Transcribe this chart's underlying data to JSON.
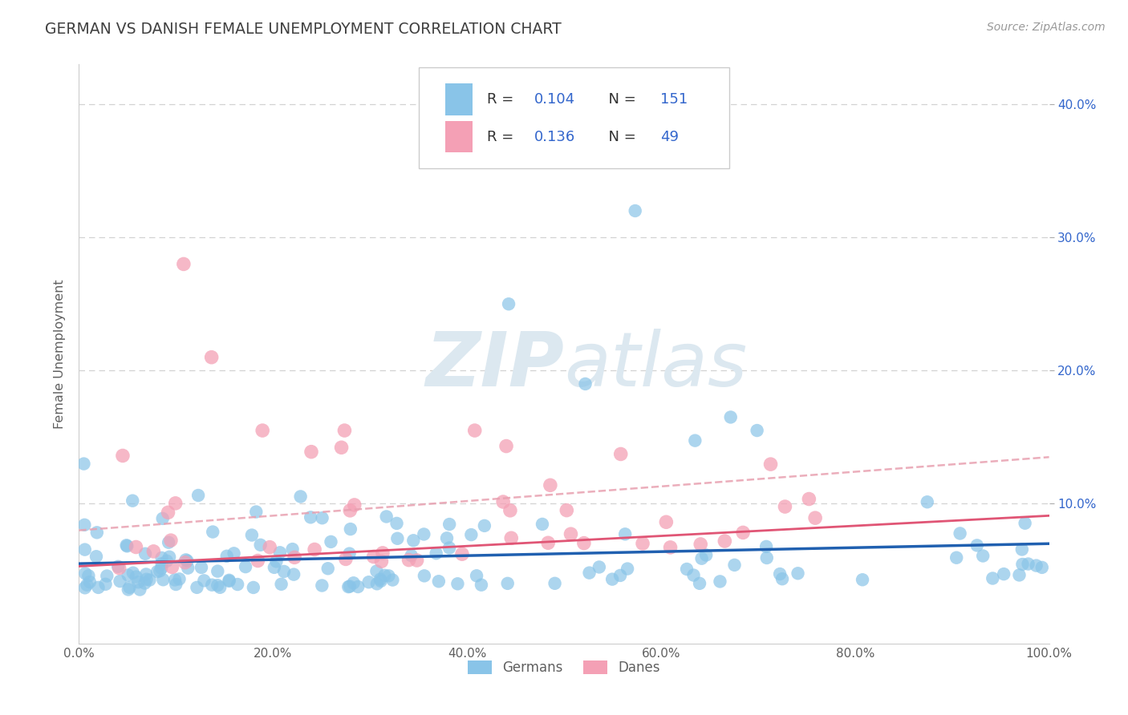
{
  "title": "GERMAN VS DANISH FEMALE UNEMPLOYMENT CORRELATION CHART",
  "source": "Source: ZipAtlas.com",
  "ylabel": "Female Unemployment",
  "legend_r": [
    0.104,
    0.136
  ],
  "legend_n": [
    151,
    49
  ],
  "german_color": "#89c4e8",
  "danish_color": "#f4a0b5",
  "german_line_color": "#2060b0",
  "danish_line_color": "#e05575",
  "danish_dash_color": "#e8a0b0",
  "watermark_color": "#dce8f0",
  "background_color": "#ffffff",
  "grid_color": "#c8c8c8",
  "title_color": "#404040",
  "axis_color": "#606060",
  "right_tick_color": "#3366cc",
  "xlim": [
    0.0,
    1.0
  ],
  "ylim": [
    -0.005,
    0.43
  ],
  "x_ticks": [
    0.0,
    0.2,
    0.4,
    0.6,
    0.8,
    1.0
  ],
  "x_tick_labels": [
    "0.0%",
    "20.0%",
    "40.0%",
    "60.0%",
    "80.0%",
    "100.0%"
  ],
  "y_ticks_right": [
    0.1,
    0.2,
    0.3,
    0.4
  ],
  "y_tick_labels_right": [
    "10.0%",
    "20.0%",
    "30.0%",
    "40.0%"
  ]
}
